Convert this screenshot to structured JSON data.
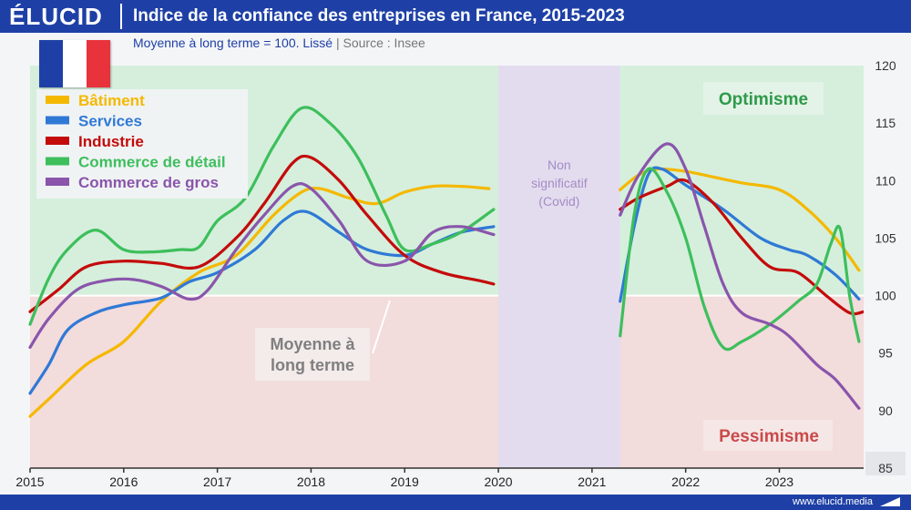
{
  "header": {
    "logo": "ÉLUCID",
    "title": "Indice de la confiance des entreprises en France, 2015-2023",
    "subtitle_main": "Moyenne à long terme = 100. Lissé",
    "subtitle_sep": "|",
    "subtitle_source": "Source : Insee"
  },
  "footer": {
    "url": "www.elucid.media"
  },
  "colors": {
    "brand": "#1e40a6",
    "optimism_zone": "#d5efdc",
    "pessimism_zone": "#f2dcdc",
    "covid_zone": "#e3dcef",
    "flag": [
      "#1e40a6",
      "#ffffff",
      "#e8323c"
    ]
  },
  "annotations": {
    "optimisme": "Optimisme",
    "pessimisme": "Pessimisme",
    "covid": [
      "Non",
      "significatif",
      "(Covid)"
    ],
    "moyenne": [
      "Moyenne à",
      "long terme"
    ]
  },
  "chart_data": {
    "type": "line",
    "title": "Indice de la confiance des entreprises en France, 2015-2023",
    "ylim": [
      85,
      120
    ],
    "xlim": [
      2015,
      2023.9
    ],
    "grid": false,
    "legend_position": "top-left",
    "x_ticks": [
      2015,
      2016,
      2017,
      2018,
      2019,
      2020,
      2021,
      2022,
      2023
    ],
    "y_ticks": [
      85,
      90,
      95,
      100,
      105,
      110,
      115,
      120
    ],
    "reference_line": 100,
    "covid_gap": [
      2020,
      2021.3
    ],
    "series": [
      {
        "name": "Bâtiment",
        "color": "#f5b800",
        "segments": [
          [
            [
              2015,
              89.5
            ],
            [
              2015.2,
              91
            ],
            [
              2015.6,
              94
            ],
            [
              2016,
              96
            ],
            [
              2016.4,
              99.5
            ],
            [
              2016.8,
              102
            ],
            [
              2017.2,
              103.5
            ],
            [
              2017.6,
              107
            ],
            [
              2017.9,
              109
            ],
            [
              2018.1,
              109.3
            ],
            [
              2018.4,
              108.5
            ],
            [
              2018.7,
              108
            ],
            [
              2019,
              109
            ],
            [
              2019.3,
              109.5
            ],
            [
              2019.6,
              109.5
            ],
            [
              2019.9,
              109.3
            ]
          ],
          [
            [
              2021.3,
              109.2
            ],
            [
              2021.5,
              110.5
            ],
            [
              2021.7,
              111
            ],
            [
              2022,
              110.8
            ],
            [
              2022.3,
              110.3
            ],
            [
              2022.6,
              109.8
            ],
            [
              2023,
              109.2
            ],
            [
              2023.3,
              107.5
            ],
            [
              2023.6,
              105
            ],
            [
              2023.85,
              102.2
            ]
          ]
        ]
      },
      {
        "name": "Services",
        "color": "#2f79d6",
        "segments": [
          [
            [
              2015,
              91.5
            ],
            [
              2015.2,
              94
            ],
            [
              2015.4,
              97
            ],
            [
              2015.7,
              98.5
            ],
            [
              2016,
              99.2
            ],
            [
              2016.4,
              99.8
            ],
            [
              2016.7,
              101.2
            ],
            [
              2017,
              102
            ],
            [
              2017.4,
              104
            ],
            [
              2017.7,
              106.5
            ],
            [
              2017.95,
              107.3
            ],
            [
              2018.3,
              105.5
            ],
            [
              2018.6,
              104
            ],
            [
              2019,
              103.5
            ],
            [
              2019.3,
              104.5
            ],
            [
              2019.6,
              105.5
            ],
            [
              2019.95,
              106
            ]
          ],
          [
            [
              2021.3,
              99.5
            ],
            [
              2021.45,
              106
            ],
            [
              2021.6,
              110.5
            ],
            [
              2021.75,
              111
            ],
            [
              2022,
              109.6
            ],
            [
              2022.4,
              107.5
            ],
            [
              2022.8,
              105
            ],
            [
              2023.1,
              104
            ],
            [
              2023.3,
              103.5
            ],
            [
              2023.6,
              101.8
            ],
            [
              2023.85,
              99.7
            ]
          ]
        ]
      },
      {
        "name": "Industrie",
        "color": "#c40b0b",
        "segments": [
          [
            [
              2015,
              98.6
            ],
            [
              2015.3,
              100.5
            ],
            [
              2015.6,
              102.5
            ],
            [
              2016,
              103
            ],
            [
              2016.4,
              102.8
            ],
            [
              2016.8,
              102.5
            ],
            [
              2017.2,
              105
            ],
            [
              2017.5,
              108
            ],
            [
              2017.8,
              111.5
            ],
            [
              2018,
              112
            ],
            [
              2018.3,
              110
            ],
            [
              2018.6,
              107
            ],
            [
              2019,
              103.5
            ],
            [
              2019.4,
              102
            ],
            [
              2019.8,
              101.3
            ],
            [
              2019.95,
              101
            ]
          ],
          [
            [
              2021.3,
              107.5
            ],
            [
              2021.5,
              108.5
            ],
            [
              2021.8,
              109.5
            ],
            [
              2022,
              110
            ],
            [
              2022.3,
              108
            ],
            [
              2022.6,
              105
            ],
            [
              2022.9,
              102.5
            ],
            [
              2023.2,
              102
            ],
            [
              2023.5,
              100
            ],
            [
              2023.75,
              98.5
            ],
            [
              2023.9,
              98.6
            ]
          ]
        ]
      },
      {
        "name": "Commerce de détail",
        "color": "#3dbf5c",
        "segments": [
          [
            [
              2015,
              97.5
            ],
            [
              2015.2,
              101.5
            ],
            [
              2015.4,
              104
            ],
            [
              2015.7,
              105.7
            ],
            [
              2016,
              104
            ],
            [
              2016.3,
              103.8
            ],
            [
              2016.6,
              104
            ],
            [
              2016.8,
              104.2
            ],
            [
              2017,
              106.5
            ],
            [
              2017.3,
              108.5
            ],
            [
              2017.6,
              113
            ],
            [
              2017.9,
              116.3
            ],
            [
              2018.2,
              115
            ],
            [
              2018.5,
              112
            ],
            [
              2018.8,
              107
            ],
            [
              2019,
              104
            ],
            [
              2019.3,
              104.5
            ],
            [
              2019.6,
              105.5
            ],
            [
              2019.95,
              107.5
            ]
          ],
          [
            [
              2021.3,
              96.5
            ],
            [
              2021.45,
              107
            ],
            [
              2021.6,
              111
            ],
            [
              2021.8,
              109
            ],
            [
              2022,
              105
            ],
            [
              2022.2,
              99
            ],
            [
              2022.4,
              95.5
            ],
            [
              2022.6,
              96
            ],
            [
              2022.9,
              97.5
            ],
            [
              2023.2,
              99.5
            ],
            [
              2023.4,
              101
            ],
            [
              2023.55,
              104.5
            ],
            [
              2023.65,
              105.8
            ],
            [
              2023.75,
              100
            ],
            [
              2023.85,
              96
            ]
          ]
        ]
      },
      {
        "name": "Commerce de gros",
        "color": "#8a55ab",
        "segments": [
          [
            [
              2015,
              95.5
            ],
            [
              2015.2,
              98
            ],
            [
              2015.5,
              100.5
            ],
            [
              2015.8,
              101.3
            ],
            [
              2016.1,
              101.4
            ],
            [
              2016.4,
              100.8
            ],
            [
              2016.7,
              99.7
            ],
            [
              2016.9,
              100.5
            ],
            [
              2017.2,
              104
            ],
            [
              2017.5,
              107
            ],
            [
              2017.8,
              109.5
            ],
            [
              2018,
              109.3
            ],
            [
              2018.3,
              106.5
            ],
            [
              2018.6,
              103
            ],
            [
              2019,
              103
            ],
            [
              2019.3,
              105.5
            ],
            [
              2019.6,
              106
            ],
            [
              2019.95,
              105.3
            ]
          ],
          [
            [
              2021.3,
              107
            ],
            [
              2021.5,
              110.5
            ],
            [
              2021.8,
              113.2
            ],
            [
              2022,
              111
            ],
            [
              2022.2,
              106
            ],
            [
              2022.4,
              101
            ],
            [
              2022.6,
              98.5
            ],
            [
              2022.9,
              97.5
            ],
            [
              2023.1,
              96.5
            ],
            [
              2023.4,
              94
            ],
            [
              2023.6,
              92.7
            ],
            [
              2023.85,
              90.2
            ]
          ]
        ]
      }
    ]
  }
}
